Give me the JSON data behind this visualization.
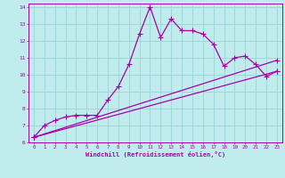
{
  "xlabel": "Windchill (Refroidissement éolien,°C)",
  "background_color": "#c0eced",
  "grid_color": "#9dd8d8",
  "line_color": "#aa00aa",
  "xlim": [
    -0.5,
    23.5
  ],
  "ylim": [
    6,
    14.2
  ],
  "xticks": [
    0,
    1,
    2,
    3,
    4,
    5,
    6,
    7,
    8,
    9,
    10,
    11,
    12,
    13,
    14,
    15,
    16,
    17,
    18,
    19,
    20,
    21,
    22,
    23
  ],
  "yticks": [
    6,
    7,
    8,
    9,
    10,
    11,
    12,
    13,
    14
  ],
  "curve1_x": [
    0,
    1,
    2,
    3,
    4,
    5,
    6,
    7,
    8,
    9,
    10,
    11,
    12,
    13,
    14,
    15,
    16,
    17,
    18,
    19,
    20,
    21,
    22,
    23
  ],
  "curve1_y": [
    6.3,
    7.0,
    7.3,
    7.5,
    7.6,
    7.6,
    7.6,
    8.5,
    9.3,
    10.6,
    12.4,
    14.0,
    12.2,
    13.3,
    12.6,
    12.6,
    12.4,
    11.8,
    10.5,
    11.0,
    11.1,
    10.6,
    9.9,
    10.2
  ],
  "curve2_x": [
    0,
    23
  ],
  "curve2_y": [
    6.3,
    10.2
  ],
  "curve3_x": [
    0,
    23
  ],
  "curve3_y": [
    6.3,
    10.85
  ],
  "marker": "+",
  "marker_size": 4,
  "line_width": 0.9
}
